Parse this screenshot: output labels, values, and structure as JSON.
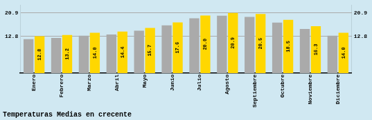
{
  "chart_data": {
    "type": "bar",
    "title": "Temperaturas Medias en crecente",
    "categories": [
      "Enero",
      "Febrero",
      "Marzo",
      "Abril",
      "Mayo",
      "Junio",
      "Julio",
      "Agosto",
      "Septiembre",
      "Octubre",
      "Noviembre",
      "Diciembre"
    ],
    "series": [
      {
        "color": "#AAAAAA",
        "values": [
          11.8,
          12.2,
          13.0,
          13.4,
          14.7,
          16.6,
          19.0,
          19.9,
          19.5,
          17.5,
          15.3,
          13.0
        ]
      },
      {
        "color": "#FFD700",
        "values": [
          12.8,
          13.2,
          14.0,
          14.4,
          15.7,
          17.6,
          20.0,
          20.9,
          20.5,
          18.5,
          16.3,
          14.0
        ],
        "value_labels": [
          "12.8",
          "13.2",
          "14.0",
          "14.4",
          "15.7",
          "17.6",
          "20.0",
          "20.9",
          "20.5",
          "18.5",
          "16.3",
          "14.0"
        ],
        "data_labels": true
      }
    ],
    "ylim": [
      0,
      23.5
    ],
    "yticks": [
      12.8,
      20.9
    ],
    "y2lim": [
      0,
      23.5
    ],
    "y2ticks": [
      12.8,
      20.9
    ],
    "grid": true
  }
}
